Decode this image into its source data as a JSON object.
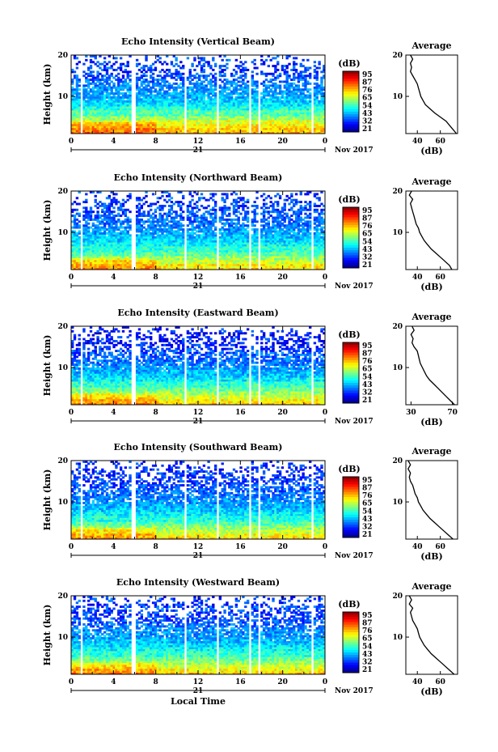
{
  "chart_data": [
    {
      "type": "heatmap",
      "title": "Echo Intensity (Vertical Beam)",
      "ylabel": "Height (km)",
      "xlabel": "",
      "x_ticks": [
        "0",
        "4",
        "8",
        "12",
        "16",
        "20",
        "0"
      ],
      "y_ticks": [
        "20",
        "10"
      ],
      "ylim": [
        1,
        20
      ],
      "date_labels": [
        "21",
        "Nov 2017"
      ],
      "colorbar": {
        "unit": "(dB)",
        "ticks": [
          "95",
          "87",
          "76",
          "65",
          "54",
          "43",
          "32",
          "21"
        ],
        "range": [
          21,
          95
        ]
      },
      "gaps_hours": [
        1,
        5.9,
        10.8,
        13.9,
        16.9,
        17.8,
        22.8
      ],
      "average": {
        "title": "Average",
        "xlabel": "(dB)",
        "x_ticks": [
          "40",
          "60"
        ],
        "y_ticks": [
          "20",
          "10"
        ],
        "xlim": [
          30,
          75
        ],
        "profile_height_km": [
          1,
          2,
          3,
          4,
          5,
          6,
          7,
          8,
          9,
          10,
          11,
          12,
          13,
          14,
          15,
          16,
          17,
          18,
          19,
          20
        ],
        "profile_db": [
          74,
          71,
          68,
          65,
          60,
          55,
          51,
          47,
          45,
          43,
          42,
          41,
          40,
          38,
          36,
          34,
          35,
          34,
          36,
          34
        ]
      }
    },
    {
      "type": "heatmap",
      "title": "Echo Intensity (Northward Beam)",
      "ylabel": "Height (km)",
      "xlabel": "",
      "x_ticks": [
        "0",
        "4",
        "8",
        "12",
        "16",
        "20",
        "0"
      ],
      "y_ticks": [
        "20",
        "10"
      ],
      "ylim": [
        1,
        20
      ],
      "date_labels": [
        "21",
        "Nov 2017"
      ],
      "colorbar": {
        "unit": "(dB)",
        "ticks": [
          "95",
          "87",
          "76",
          "65",
          "54",
          "43",
          "32",
          "21"
        ],
        "range": [
          21,
          95
        ]
      },
      "gaps_hours": [
        1,
        5.9,
        10.8,
        13.9,
        16.9,
        17.8,
        22.8
      ],
      "average": {
        "title": "Average",
        "xlabel": "(dB)",
        "x_ticks": [
          "40",
          "60"
        ],
        "y_ticks": [
          "20",
          "10"
        ],
        "xlim": [
          30,
          75
        ],
        "profile_height_km": [
          1,
          2,
          3,
          4,
          5,
          6,
          7,
          8,
          9,
          10,
          11,
          12,
          13,
          14,
          15,
          16,
          17,
          18,
          19,
          20
        ],
        "profile_db": [
          70,
          68,
          64,
          60,
          56,
          52,
          49,
          46,
          44,
          42,
          41,
          39,
          38,
          37,
          36,
          35,
          34,
          36,
          33,
          35
        ]
      }
    },
    {
      "type": "heatmap",
      "title": "Echo Intensity (Eastward Beam)",
      "ylabel": "Height (km)",
      "xlabel": "",
      "x_ticks": [
        "0",
        "4",
        "8",
        "12",
        "16",
        "20",
        "0"
      ],
      "y_ticks": [
        "20",
        "10"
      ],
      "ylim": [
        1,
        20
      ],
      "date_labels": [
        "21",
        "Nov 2017"
      ],
      "colorbar": {
        "unit": "(dB)",
        "ticks": [
          "95",
          "87",
          "76",
          "65",
          "54",
          "43",
          "32",
          "21"
        ],
        "range": [
          21,
          95
        ]
      },
      "gaps_hours": [
        1,
        5.9,
        10.8,
        13.9,
        16.9,
        17.8,
        22.8
      ],
      "average": {
        "title": "Average",
        "xlabel": "(dB)",
        "x_ticks": [
          "30",
          "70"
        ],
        "y_ticks": [
          "20",
          "10"
        ],
        "xlim": [
          25,
          75
        ],
        "profile_height_km": [
          1,
          2,
          3,
          4,
          5,
          6,
          7,
          8,
          9,
          10,
          11,
          12,
          13,
          14,
          15,
          16,
          17,
          18,
          19,
          20
        ],
        "profile_db": [
          72,
          68,
          64,
          60,
          56,
          52,
          48,
          45,
          43,
          41,
          39,
          38,
          37,
          36,
          33,
          31,
          32,
          30,
          33,
          31
        ]
      }
    },
    {
      "type": "heatmap",
      "title": "Echo Intensity (Southward Beam)",
      "ylabel": "Height (km)",
      "xlabel": "",
      "x_ticks": [
        "0",
        "4",
        "8",
        "12",
        "16",
        "20",
        "0"
      ],
      "y_ticks": [
        "20",
        "10"
      ],
      "ylim": [
        1,
        20
      ],
      "date_labels": [
        "21",
        "Nov 2017"
      ],
      "colorbar": {
        "unit": "(dB)",
        "ticks": [
          "95",
          "87",
          "76",
          "65",
          "54",
          "43",
          "32",
          "21"
        ],
        "range": [
          21,
          95
        ]
      },
      "gaps_hours": [
        1,
        5.9,
        10.8,
        13.9,
        16.9,
        17.8,
        22.8
      ],
      "average": {
        "title": "Average",
        "xlabel": "(dB)",
        "x_ticks": [
          "40",
          "60"
        ],
        "y_ticks": [
          "20",
          "10"
        ],
        "xlim": [
          30,
          75
        ],
        "profile_height_km": [
          1,
          2,
          3,
          4,
          5,
          6,
          7,
          8,
          9,
          10,
          11,
          12,
          13,
          14,
          15,
          16,
          17,
          18,
          19,
          20
        ],
        "profile_db": [
          71,
          67,
          63,
          59,
          55,
          51,
          48,
          45,
          43,
          41,
          40,
          38,
          37,
          36,
          34,
          33,
          34,
          32,
          34,
          32
        ]
      }
    },
    {
      "type": "heatmap",
      "title": "Echo Intensity (Westward Beam)",
      "ylabel": "Height (km)",
      "xlabel": "Local Time",
      "x_ticks": [
        "0",
        "4",
        "8",
        "12",
        "16",
        "20",
        "0"
      ],
      "y_ticks": [
        "20",
        "10"
      ],
      "ylim": [
        1,
        20
      ],
      "date_labels": [
        "21",
        "Nov 2017"
      ],
      "colorbar": {
        "unit": "(dB)",
        "ticks": [
          "95",
          "87",
          "76",
          "65",
          "54",
          "43",
          "32",
          "21"
        ],
        "range": [
          21,
          95
        ]
      },
      "gaps_hours": [
        1,
        5.9,
        10.8,
        13.9,
        16.9,
        17.8,
        22.8
      ],
      "average": {
        "title": "Average",
        "xlabel": "(dB)",
        "x_ticks": [
          "40",
          "60"
        ],
        "y_ticks": [
          "20",
          "10"
        ],
        "xlim": [
          30,
          75
        ],
        "profile_height_km": [
          1,
          2,
          3,
          4,
          5,
          6,
          7,
          8,
          9,
          10,
          11,
          12,
          13,
          14,
          15,
          16,
          17,
          18,
          19,
          20
        ],
        "profile_db": [
          72,
          68,
          64,
          60,
          56,
          52,
          49,
          46,
          44,
          42,
          41,
          40,
          38,
          36,
          35,
          34,
          36,
          33,
          35,
          33
        ]
      }
    }
  ]
}
